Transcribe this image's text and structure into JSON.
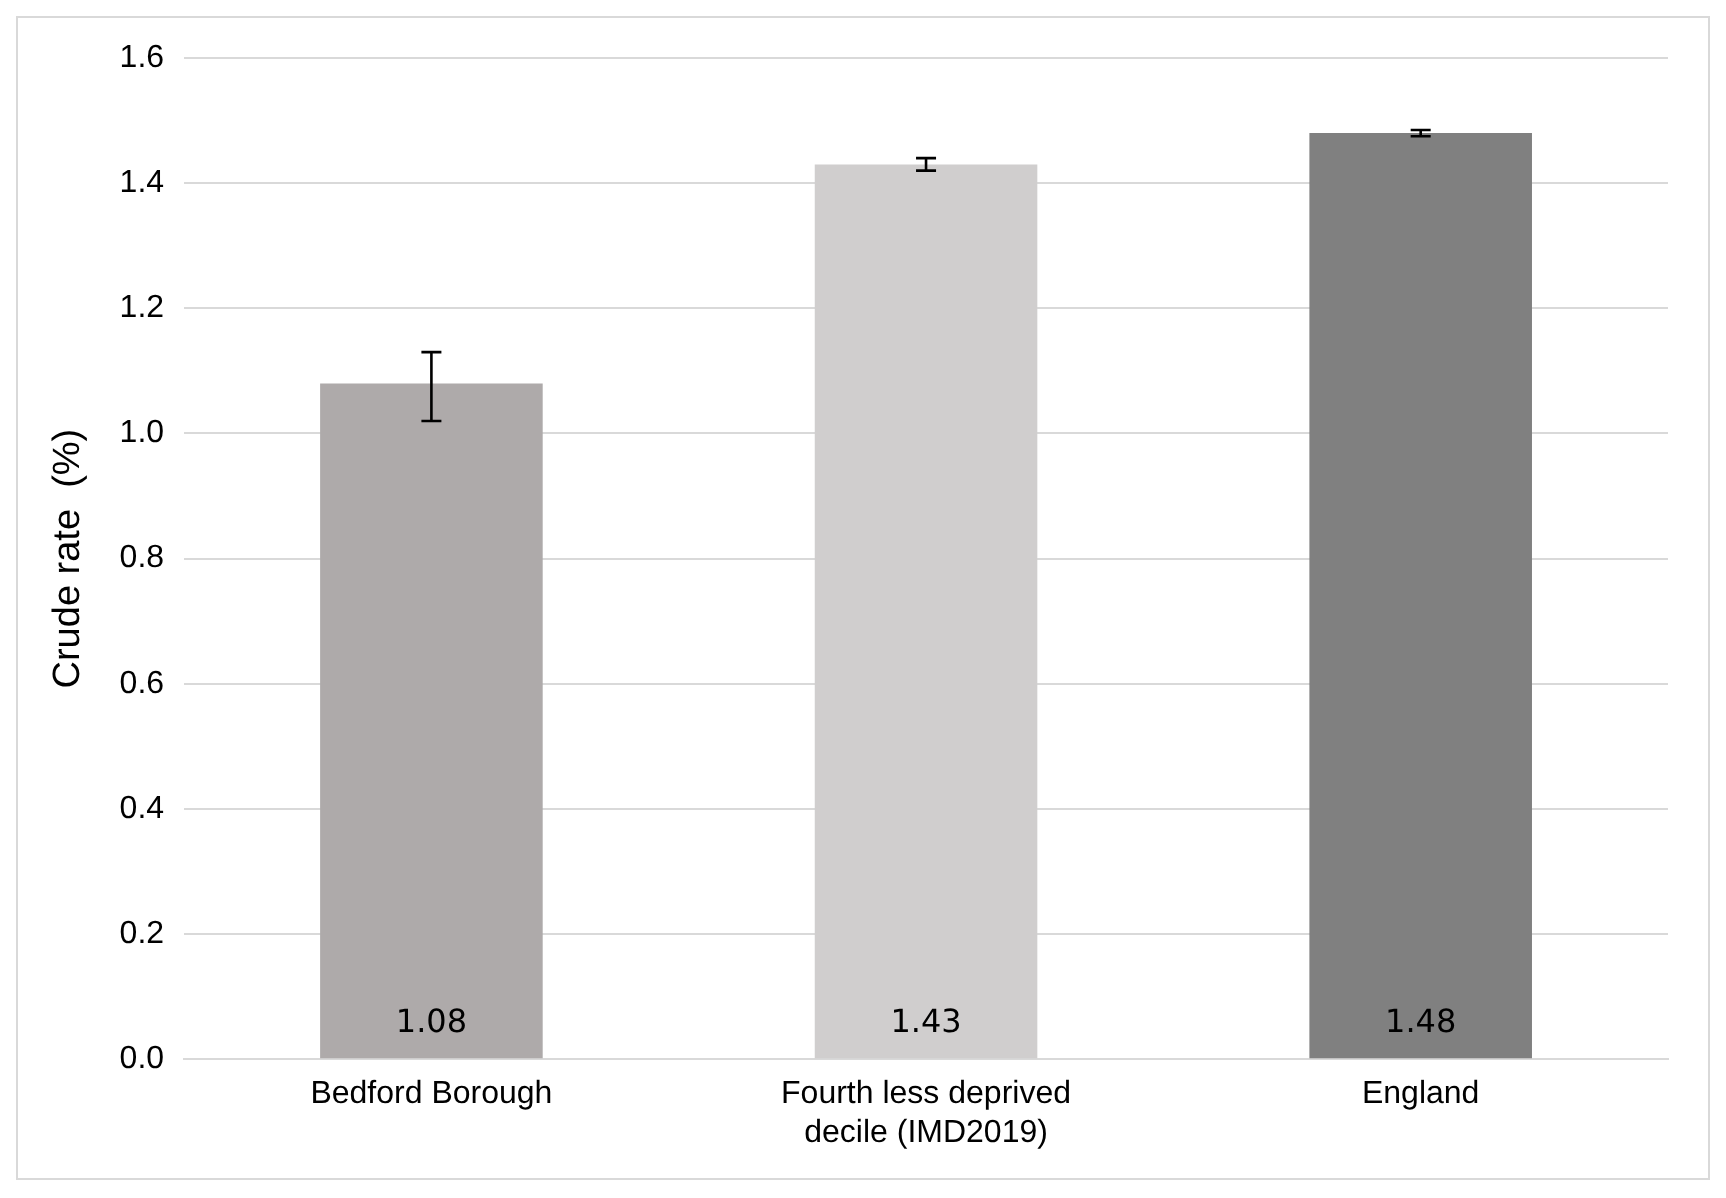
{
  "chart_data": {
    "type": "bar",
    "ylabel": "Crude rate  (%)",
    "categories": [
      "Bedford Borough",
      "Fourth less deprived decile (IMD2019)",
      "England"
    ],
    "values": [
      1.08,
      1.43,
      1.48
    ],
    "colors": [
      "#aeaaaa",
      "#d0cece",
      "#808080"
    ],
    "errors": [
      [
        1.02,
        1.13
      ],
      [
        1.42,
        1.44
      ],
      [
        1.475,
        1.485
      ]
    ],
    "data_labels": true,
    "ylim": [
      0,
      1.6
    ],
    "yticks": [
      {
        "value": 0,
        "label": "0.0"
      },
      {
        "value": 0.2,
        "label": "0.2"
      },
      {
        "value": 0.4,
        "label": "0.4"
      },
      {
        "value": 0.6,
        "label": "0.6"
      },
      {
        "value": 0.8,
        "label": "0.8"
      },
      {
        "value": 1,
        "label": "1.0"
      },
      {
        "value": 1.2,
        "label": "1.2"
      },
      {
        "value": 1.4,
        "label": "1.4"
      },
      {
        "value": 1.6,
        "label": "1.6"
      }
    ],
    "grid": "y"
  }
}
